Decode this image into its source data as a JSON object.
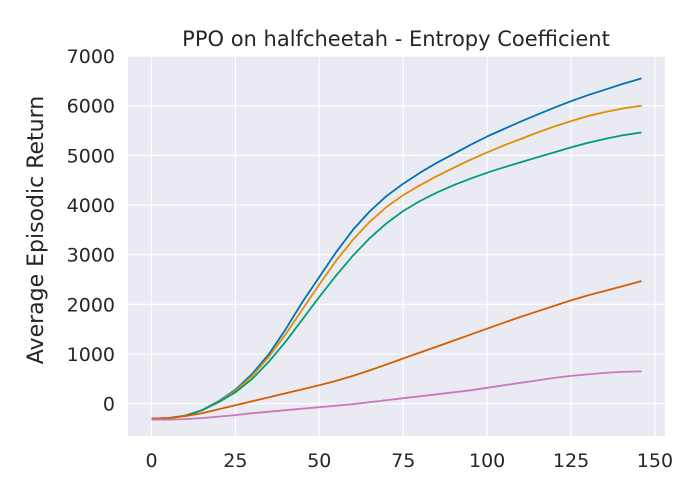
{
  "chart_data": {
    "type": "line",
    "title": "PPO on halfcheetah - Entropy Coefficient",
    "xlabel": "",
    "ylabel": "Average Episodic Return",
    "xlim": [
      -7,
      153
    ],
    "ylim": [
      -650,
      7000
    ],
    "xticks": [
      0,
      25,
      50,
      75,
      100,
      125,
      150
    ],
    "yticks": [
      0,
      1000,
      2000,
      3000,
      4000,
      5000,
      6000,
      7000
    ],
    "grid": true,
    "legend": "none",
    "x": [
      0,
      5,
      10,
      15,
      20,
      25,
      30,
      35,
      40,
      45,
      50,
      55,
      60,
      65,
      70,
      75,
      80,
      85,
      90,
      95,
      100,
      105,
      110,
      115,
      120,
      125,
      130,
      135,
      140,
      146
    ],
    "series": [
      {
        "name": "series-blue",
        "color": "#0173b2",
        "values": [
          -300,
          -290,
          -240,
          -130,
          50,
          280,
          600,
          1000,
          1500,
          2050,
          2550,
          3050,
          3500,
          3870,
          4180,
          4430,
          4650,
          4850,
          5030,
          5210,
          5380,
          5530,
          5680,
          5820,
          5960,
          6090,
          6210,
          6320,
          6430,
          6550
        ],
        "band": [
          -20,
          -20,
          -20,
          -30,
          -40,
          -50,
          -60,
          -70,
          -80,
          -90,
          -100,
          -110,
          -120,
          -130,
          -130,
          -130,
          -130,
          -130,
          -130,
          -130,
          -140,
          -140,
          -140,
          -140,
          -140,
          -140,
          -140,
          -140,
          -140,
          -140
        ]
      },
      {
        "name": "series-orange",
        "color": "#de8f05",
        "values": [
          -300,
          -290,
          -240,
          -130,
          40,
          260,
          560,
          950,
          1400,
          1900,
          2400,
          2880,
          3300,
          3660,
          3960,
          4200,
          4400,
          4580,
          4750,
          4910,
          5060,
          5200,
          5330,
          5460,
          5580,
          5690,
          5790,
          5870,
          5940,
          6000
        ],
        "band": [
          -20,
          -20,
          -20,
          -30,
          -40,
          -50,
          -60,
          -70,
          -80,
          -90,
          -100,
          -110,
          -120,
          -130,
          -130,
          -130,
          -130,
          -130,
          -130,
          -130,
          -140,
          -140,
          -140,
          -140,
          -140,
          -140,
          -140,
          -140,
          -140,
          -140
        ]
      },
      {
        "name": "series-green",
        "color": "#029e73",
        "values": [
          -300,
          -290,
          -245,
          -135,
          30,
          230,
          500,
          850,
          1250,
          1700,
          2150,
          2580,
          2980,
          3330,
          3630,
          3880,
          4080,
          4250,
          4400,
          4530,
          4650,
          4760,
          4860,
          4960,
          5060,
          5160,
          5250,
          5330,
          5400,
          5460
        ],
        "band": [
          -20,
          -20,
          -20,
          -30,
          -40,
          -50,
          -60,
          -70,
          -80,
          -90,
          -100,
          -110,
          -120,
          -120,
          -120,
          -120,
          -120,
          -120,
          -120,
          -120,
          -120,
          -120,
          -120,
          -120,
          -120,
          -120,
          -120,
          -120,
          -120,
          -120
        ]
      },
      {
        "name": "series-red",
        "color": "#d55e00",
        "values": [
          -300,
          -290,
          -250,
          -190,
          -110,
          -30,
          50,
          130,
          210,
          290,
          370,
          460,
          560,
          670,
          790,
          910,
          1030,
          1150,
          1270,
          1390,
          1510,
          1630,
          1750,
          1860,
          1970,
          2080,
          2180,
          2270,
          2360,
          2470
        ],
        "band": [
          -20,
          -20,
          -20,
          -20,
          -30,
          -30,
          -40,
          -40,
          -50,
          -50,
          -60,
          -60,
          -70,
          -70,
          -80,
          -80,
          -80,
          -80,
          -80,
          -80,
          -80,
          -80,
          -80,
          -80,
          -80,
          -80,
          -80,
          -80,
          -80,
          -80
        ]
      },
      {
        "name": "series-pink",
        "color": "#cc78bc",
        "values": [
          -320,
          -320,
          -310,
          -290,
          -260,
          -230,
          -190,
          -160,
          -130,
          -100,
          -70,
          -40,
          -10,
          30,
          70,
          110,
          150,
          190,
          230,
          270,
          320,
          370,
          420,
          470,
          520,
          560,
          590,
          620,
          640,
          650
        ],
        "band": [
          -20,
          -20,
          -20,
          -20,
          -20,
          -20,
          -20,
          -20,
          -20,
          -20,
          -20,
          -20,
          -20,
          -20,
          -20,
          -20,
          -20,
          -20,
          -30,
          -30,
          -30,
          -30,
          -30,
          -40,
          -40,
          -40,
          -40,
          -40,
          -40,
          -40
        ]
      }
    ]
  },
  "colors": {
    "plot_background": "#eaeaf2",
    "grid": "#ffffff",
    "text": "#262626"
  }
}
